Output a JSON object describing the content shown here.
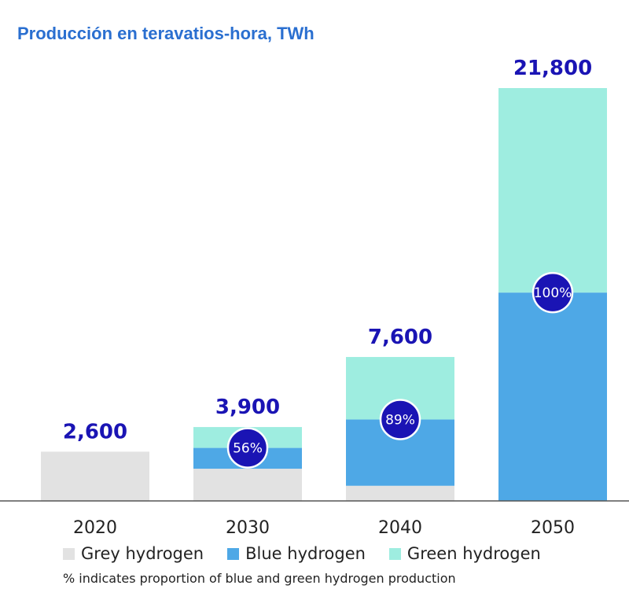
{
  "chart_data": {
    "type": "bar",
    "stacked": true,
    "title": "Producción en teravatios-hora, TWh",
    "categories": [
      "2020",
      "2030",
      "2040",
      "2050"
    ],
    "totals_labels": [
      "2,600",
      "3,900",
      "7,600",
      "21,800"
    ],
    "series": [
      {
        "name": "Grey hydrogen",
        "color": "#e2e2e2",
        "values": [
          2600,
          1700,
          800,
          0
        ]
      },
      {
        "name": "Blue hydrogen",
        "color": "#4ea8e6",
        "values": [
          0,
          1100,
          3500,
          11000
        ]
      },
      {
        "name": "Green hydrogen",
        "color": "#9eede0",
        "values": [
          0,
          1100,
          3300,
          10800
        ]
      }
    ],
    "badges": [
      null,
      "56%",
      "89%",
      "100%"
    ],
    "badge_color": "#1a14b4",
    "ylim": [
      0,
      21800
    ],
    "grid": false,
    "legend_position": "bottom",
    "footnote": "% indicates proportion of blue and green hydrogen production"
  }
}
